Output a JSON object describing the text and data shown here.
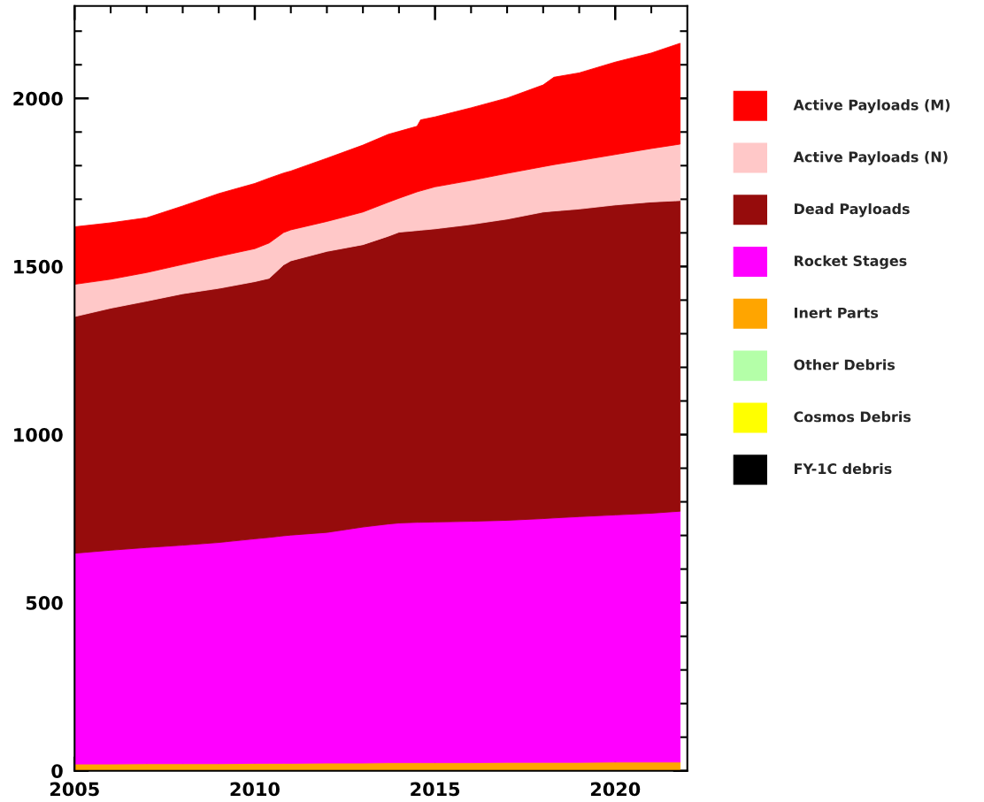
{
  "chart_data": {
    "type": "area",
    "stacked": true,
    "x": [
      2005,
      2006,
      2007,
      2008,
      2009,
      2010,
      2010.4,
      2010.8,
      2011,
      2012,
      2013,
      2013.7,
      2014,
      2014.5,
      2014.6,
      2015,
      2016,
      2017,
      2018,
      2018.3,
      2019,
      2020,
      2021,
      2021.8
    ],
    "series": [
      {
        "name": "FY-1C debris",
        "color": "#000000",
        "values": [
          null,
          null,
          null,
          null,
          null,
          null,
          null,
          null,
          null,
          null,
          null,
          null,
          null,
          null,
          null,
          null,
          null,
          null,
          null,
          null,
          null,
          null,
          null,
          null
        ]
      },
      {
        "name": "Cosmos Debris",
        "color": "#ffff00",
        "values": [
          null,
          null,
          null,
          null,
          null,
          null,
          null,
          null,
          null,
          null,
          null,
          null,
          null,
          null,
          null,
          null,
          null,
          null,
          null,
          null,
          null,
          null,
          null,
          null
        ]
      },
      {
        "name": "Other Debris",
        "color": "#b4ffa8",
        "values": [
          null,
          null,
          null,
          null,
          null,
          null,
          null,
          null,
          null,
          null,
          null,
          null,
          null,
          null,
          null,
          null,
          null,
          null,
          null,
          null,
          null,
          null,
          null,
          null
        ]
      },
      {
        "name": "Inert Parts",
        "color": "#ffa500",
        "values": [
          20,
          20,
          21,
          21,
          21,
          22,
          22,
          22,
          22,
          23,
          23,
          24,
          24,
          24,
          24,
          24,
          24,
          25,
          25,
          25,
          25,
          26,
          26,
          26
        ]
      },
      {
        "name": "Rocket Stages",
        "color": "#ff00ff",
        "values": [
          627,
          636,
          643,
          650,
          658,
          668,
          672,
          677,
          679,
          686,
          702,
          710,
          713,
          715,
          715,
          716,
          718,
          720,
          725,
          727,
          731,
          735,
          740,
          746
        ]
      },
      {
        "name": "Dead Payloads",
        "color": "#960c0c",
        "values": [
          704,
          720,
          733,
          748,
          756,
          765,
          771,
          806,
          816,
          836,
          840,
          856,
          865,
          868,
          869,
          872,
          883,
          896,
          912,
          913,
          915,
          922,
          926,
          924
        ]
      },
      {
        "name": "Active Payloads (N)",
        "color": "#ffc8c8",
        "values": [
          96,
          86,
          85,
          87,
          95,
          98,
          105,
          96,
          92,
          89,
          97,
          101,
          101,
          115,
          117,
          125,
          131,
          136,
          135,
          138,
          144,
          150,
          159,
          168
        ]
      },
      {
        "name": "Active Payloads (M)",
        "color": "#ff0000",
        "values": [
          171,
          168,
          163,
          174,
          187,
          194,
          193,
          177,
          175,
          188,
          199,
          202,
          199,
          195,
          211,
          208,
          216,
          224,
          243,
          260,
          261,
          275,
          284,
          300
        ]
      }
    ],
    "xlim": [
      2005,
      2022
    ],
    "ylim": [
      0,
      2275
    ],
    "xticks": [
      2005,
      {
        "value": 2006,
        "label": null
      },
      {
        "value": 2007,
        "label": null
      },
      {
        "value": 2008,
        "label": null
      },
      {
        "value": 2009,
        "label": null
      },
      2010,
      {
        "value": 2011,
        "label": null
      },
      {
        "value": 2012,
        "label": null
      },
      {
        "value": 2013,
        "label": null
      },
      {
        "value": 2014,
        "label": null
      },
      2015,
      {
        "value": 2016,
        "label": null
      },
      {
        "value": 2017,
        "label": null
      },
      {
        "value": 2018,
        "label": null
      },
      {
        "value": 2019,
        "label": null
      },
      2020,
      {
        "value": 2021,
        "label": null
      }
    ],
    "yticks": [
      0,
      {
        "value": 100,
        "label": null
      },
      {
        "value": 200,
        "label": null
      },
      {
        "value": 300,
        "label": null
      },
      {
        "value": 400,
        "label": null
      },
      500,
      {
        "value": 600,
        "label": null
      },
      {
        "value": 700,
        "label": null
      },
      {
        "value": 800,
        "label": null
      },
      {
        "value": 900,
        "label": null
      },
      1000,
      {
        "value": 1100,
        "label": null
      },
      {
        "value": 1200,
        "label": null
      },
      {
        "value": 1300,
        "label": null
      },
      {
        "value": 1400,
        "label": null
      },
      1500,
      {
        "value": 1600,
        "label": null
      },
      {
        "value": 1700,
        "label": null
      },
      {
        "value": 1800,
        "label": null
      },
      {
        "value": 1900,
        "label": null
      },
      2000,
      {
        "value": 2100,
        "label": null
      },
      {
        "value": 2200,
        "label": null
      }
    ],
    "legend": "top right"
  }
}
